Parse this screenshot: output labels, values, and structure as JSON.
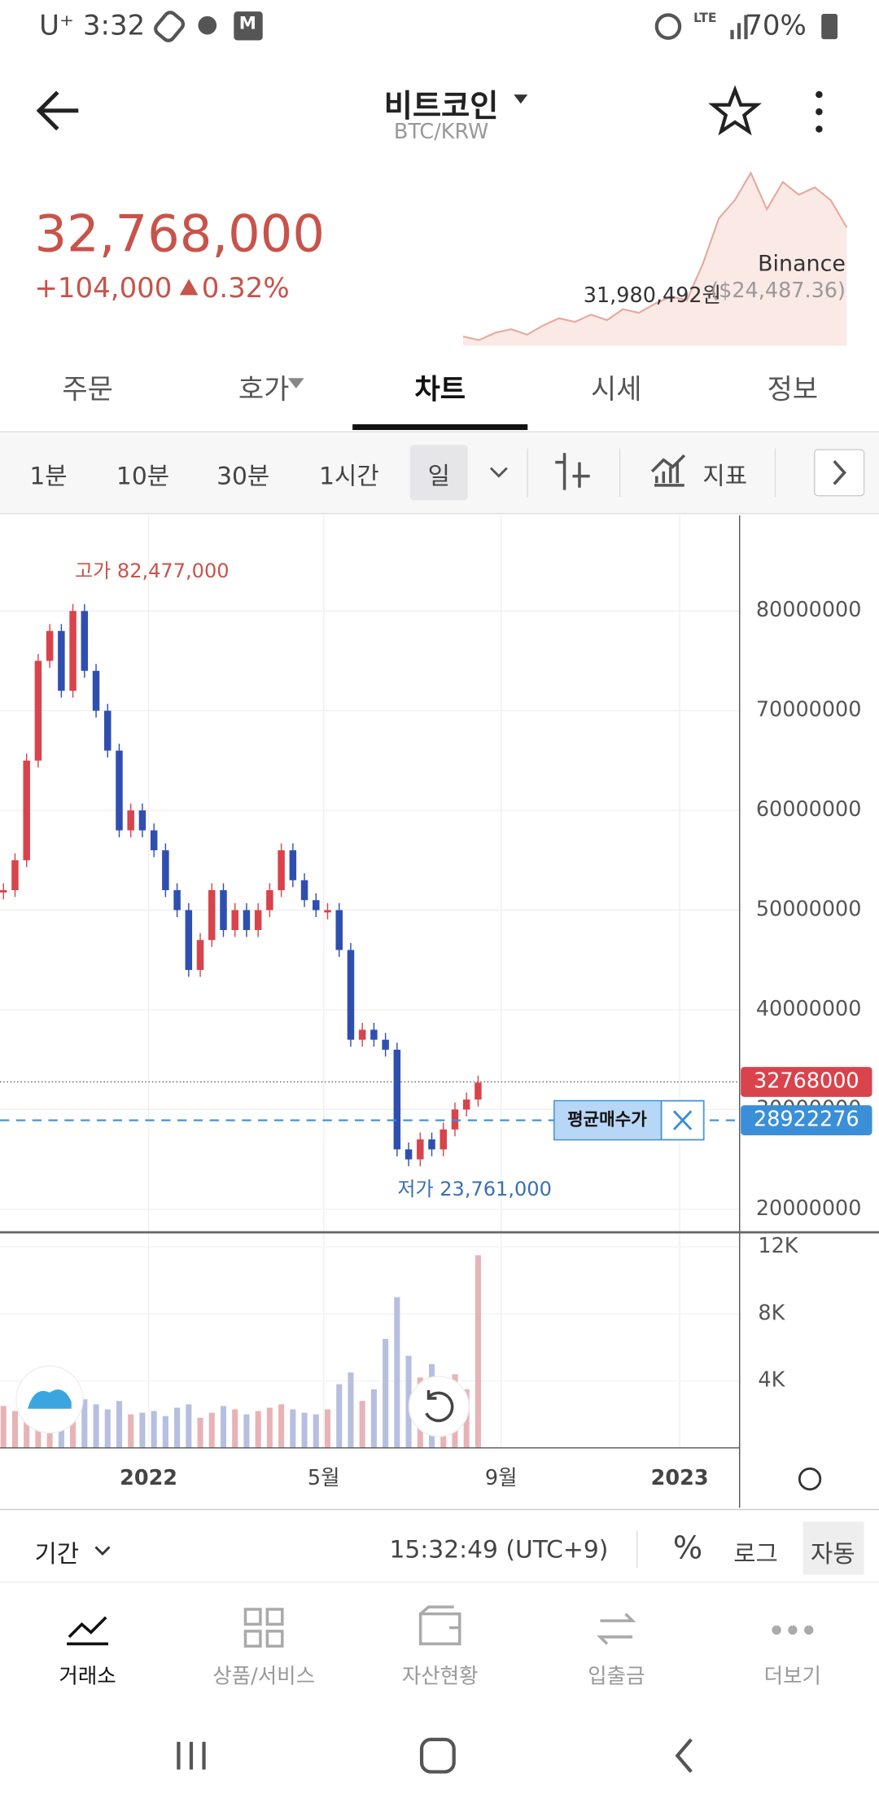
{
  "status_bar": {
    "carrier": "U⁺",
    "time": "3:32",
    "battery": "70%"
  },
  "header": {
    "title": "비트코인",
    "pair": "BTC/KRW"
  },
  "price": {
    "last": "32,768,000",
    "change": "+104,000",
    "change_pct": "0.32%"
  },
  "reference": {
    "exchange": "Binance",
    "price": "31,980,492원",
    "usd": "($24,487.36)",
    "sparkline": [
      100,
      98,
      102,
      104,
      101,
      106,
      110,
      108,
      112,
      109,
      115,
      113,
      118,
      122,
      120,
      140,
      165,
      175,
      190,
      170,
      185,
      178,
      182,
      175,
      160
    ]
  },
  "tabs": [
    "주문",
    "호가",
    "차트",
    "시세",
    "정보"
  ],
  "selected_tab": 2,
  "intervals": [
    "1분",
    "10분",
    "30분",
    "1시간",
    "일"
  ],
  "selected_interval": 4,
  "indicator": "지표",
  "chart_data": {
    "type": "candlestick",
    "values": [
      52000000,
      55000000,
      65000000,
      75000000,
      78000000,
      72000000,
      80000000,
      74000000,
      70000000,
      66000000,
      58000000,
      60000000,
      58000000,
      56000000,
      52000000,
      50000000,
      44000000,
      47000000,
      52000000,
      48000000,
      50000000,
      48000000,
      50000000,
      52000000,
      56000000,
      53000000,
      51000000,
      50000000,
      50000000,
      46000000,
      37000000,
      38000000,
      37000000,
      36000000,
      26000000,
      25000000,
      27000000,
      26000000,
      28000000,
      30000000,
      31000000,
      32700000
    ],
    "ylim": [
      17800000,
      89600000
    ],
    "yticks": [
      20000000,
      30000000,
      40000000,
      50000000,
      60000000,
      70000000,
      80000000
    ],
    "xticks": [
      "2022",
      "5월",
      "9월",
      "2023"
    ],
    "high_label": "고가 82,477,000",
    "low_label": "저가 23,761,000",
    "last_price": 32768000,
    "avg_price": 28922276,
    "avg_label": "평균매수가",
    "up_color": "#d9434b",
    "down_color": "#2f4fb0",
    "grid": true,
    "volume": {
      "values": [
        2500,
        2200,
        2600,
        3000,
        2800,
        2400,
        3200,
        2900,
        2600,
        2300,
        2800,
        2000,
        2100,
        2200,
        1900,
        2400,
        2600,
        1800,
        2100,
        2500,
        2300,
        2000,
        2200,
        2400,
        2600,
        2300,
        2100,
        2000,
        2300,
        3800,
        4500,
        2800,
        3500,
        6500,
        9000,
        5500,
        4200,
        5000,
        3800,
        4400,
        3500,
        11500
      ],
      "ylim": [
        0,
        12800
      ],
      "yticks": [
        {
          "value": 4000,
          "label": "4K"
        },
        {
          "value": 8000,
          "label": "8K"
        },
        {
          "value": 12000,
          "label": "12K"
        }
      ]
    }
  },
  "footer": {
    "period": "기간",
    "clock": "15:32:49 (UTC+9)",
    "options": [
      "%",
      "로그",
      "자동"
    ],
    "selected_option": 2
  },
  "nav": [
    "거래소",
    "상품/서비스",
    "자산현황",
    "입출금",
    "더보기"
  ],
  "selected_nav": 0
}
